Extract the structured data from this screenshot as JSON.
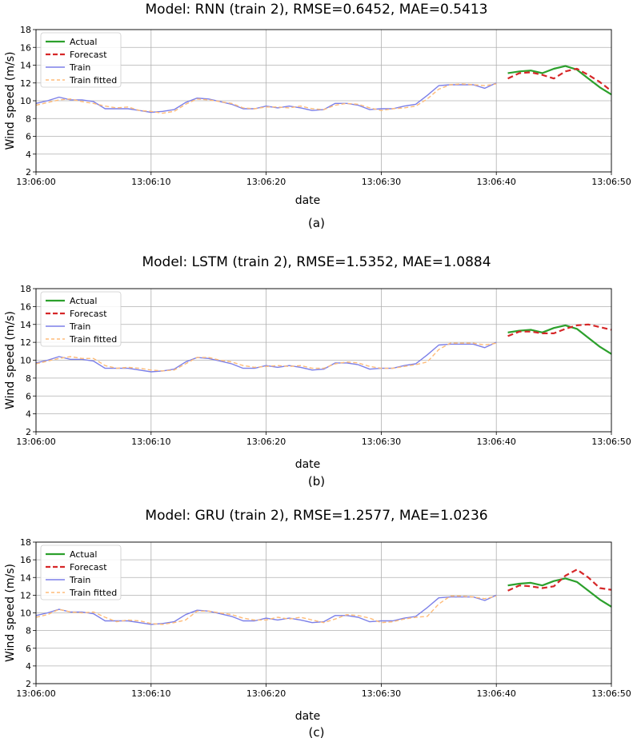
{
  "chart_data": [
    {
      "type": "line",
      "title": "Model: RNN (train 2), RMSE=0.6452, MAE=0.5413",
      "xlabel": "date",
      "ylabel": "Wind speed (m/s)",
      "panel_label": "(a)",
      "ylim": [
        2,
        18
      ],
      "yticks": [
        2,
        4,
        6,
        8,
        10,
        12,
        14,
        16,
        18
      ],
      "xlim": [
        0,
        50
      ],
      "xticks": [
        "13:06:00",
        "13:06:10",
        "13:06:20",
        "13:06:30",
        "13:06:40",
        "13:06:50"
      ],
      "grid": true,
      "legend_position": "top-left",
      "series": [
        {
          "name": "Actual",
          "color": "#2ca02c",
          "style": "solid",
          "x": [
            41,
            42,
            43,
            44,
            45,
            46,
            47,
            48,
            49,
            50
          ],
          "values": [
            13.1,
            13.3,
            13.4,
            13.1,
            13.6,
            13.9,
            13.5,
            12.5,
            11.5,
            10.7
          ]
        },
        {
          "name": "Forecast",
          "color": "#d62728",
          "style": "dashed",
          "x": [
            41,
            42,
            43,
            44,
            45,
            46,
            47,
            48,
            49,
            50
          ],
          "values": [
            12.5,
            13.1,
            13.2,
            12.9,
            12.5,
            13.3,
            13.6,
            12.9,
            12.1,
            11.1
          ]
        },
        {
          "name": "Train",
          "color": "#7b7fe8",
          "style": "solid",
          "x": [
            0,
            1,
            2,
            3,
            4,
            5,
            6,
            7,
            8,
            9,
            10,
            11,
            12,
            13,
            14,
            15,
            16,
            17,
            18,
            19,
            20,
            21,
            22,
            23,
            24,
            25,
            26,
            27,
            28,
            29,
            30,
            31,
            32,
            33,
            34,
            35,
            36,
            37,
            38,
            39,
            40
          ],
          "values": [
            9.7,
            10.0,
            10.4,
            10.1,
            10.1,
            9.9,
            9.1,
            9.1,
            9.1,
            8.9,
            8.7,
            8.8,
            9.0,
            9.8,
            10.3,
            10.2,
            9.9,
            9.6,
            9.1,
            9.1,
            9.4,
            9.2,
            9.4,
            9.2,
            8.9,
            9.0,
            9.7,
            9.7,
            9.5,
            9.0,
            9.1,
            9.1,
            9.4,
            9.6,
            10.6,
            11.7,
            11.8,
            11.8,
            11.8,
            11.4,
            12.0
          ]
        },
        {
          "name": "Train fitted",
          "color": "#ffbb78",
          "style": "dashed",
          "x": [
            0,
            1,
            2,
            3,
            4,
            5,
            6,
            7,
            8,
            9,
            10,
            11,
            12,
            13,
            14,
            15,
            16,
            17,
            18,
            19,
            20,
            21,
            22,
            23,
            24,
            25,
            26,
            27,
            28,
            29,
            30,
            31,
            32,
            33,
            34,
            35,
            36,
            37,
            38,
            39,
            40
          ],
          "values": [
            9.5,
            9.8,
            10.1,
            10.2,
            9.9,
            9.7,
            9.4,
            9.2,
            9.3,
            8.9,
            8.8,
            8.6,
            8.8,
            9.6,
            10.2,
            10.1,
            9.9,
            9.7,
            9.2,
            9.1,
            9.3,
            9.3,
            9.2,
            9.4,
            9.1,
            9.0,
            9.5,
            9.7,
            9.6,
            9.2,
            8.9,
            9.1,
            9.2,
            9.4,
            10.2,
            11.3,
            11.8,
            11.9,
            11.8,
            11.7,
            11.9
          ]
        }
      ]
    },
    {
      "type": "line",
      "title": "Model: LSTM (train 2), RMSE=1.5352, MAE=1.0884",
      "xlabel": "date",
      "ylabel": "Wind speed (m/s)",
      "panel_label": "(b)",
      "ylim": [
        2,
        18
      ],
      "yticks": [
        2,
        4,
        6,
        8,
        10,
        12,
        14,
        16,
        18
      ],
      "xlim": [
        0,
        50
      ],
      "xticks": [
        "13:06:00",
        "13:06:10",
        "13:06:20",
        "13:06:30",
        "13:06:40",
        "13:06:50"
      ],
      "grid": true,
      "legend_position": "top-left",
      "series": [
        {
          "name": "Actual",
          "color": "#2ca02c",
          "style": "solid",
          "x": [
            41,
            42,
            43,
            44,
            45,
            46,
            47,
            48,
            49,
            50
          ],
          "values": [
            13.1,
            13.3,
            13.4,
            13.1,
            13.6,
            13.9,
            13.5,
            12.5,
            11.5,
            10.7
          ]
        },
        {
          "name": "Forecast",
          "color": "#d62728",
          "style": "dashed",
          "x": [
            41,
            42,
            43,
            44,
            45,
            46,
            47,
            48,
            49,
            50
          ],
          "values": [
            12.7,
            13.2,
            13.2,
            13.0,
            13.0,
            13.5,
            13.9,
            14.0,
            13.7,
            13.4
          ]
        },
        {
          "name": "Train",
          "color": "#7b7fe8",
          "style": "solid",
          "x": [
            0,
            1,
            2,
            3,
            4,
            5,
            6,
            7,
            8,
            9,
            10,
            11,
            12,
            13,
            14,
            15,
            16,
            17,
            18,
            19,
            20,
            21,
            22,
            23,
            24,
            25,
            26,
            27,
            28,
            29,
            30,
            31,
            32,
            33,
            34,
            35,
            36,
            37,
            38,
            39,
            40
          ],
          "values": [
            9.7,
            10.0,
            10.4,
            10.1,
            10.1,
            9.9,
            9.1,
            9.1,
            9.1,
            8.9,
            8.7,
            8.8,
            9.0,
            9.8,
            10.3,
            10.2,
            9.9,
            9.6,
            9.1,
            9.1,
            9.4,
            9.2,
            9.4,
            9.2,
            8.9,
            9.0,
            9.7,
            9.7,
            9.5,
            9.0,
            9.1,
            9.1,
            9.4,
            9.6,
            10.6,
            11.7,
            11.8,
            11.8,
            11.8,
            11.4,
            12.0
          ]
        },
        {
          "name": "Train fitted",
          "color": "#ffbb78",
          "style": "dashed",
          "x": [
            0,
            1,
            2,
            3,
            4,
            5,
            6,
            7,
            8,
            9,
            10,
            11,
            12,
            13,
            14,
            15,
            16,
            17,
            18,
            19,
            20,
            21,
            22,
            23,
            24,
            25,
            26,
            27,
            28,
            29,
            30,
            31,
            32,
            33,
            34,
            35,
            36,
            37,
            38,
            39,
            40
          ],
          "values": [
            9.6,
            9.9,
            10.2,
            10.4,
            10.2,
            10.2,
            9.4,
            9.1,
            9.2,
            9.1,
            8.9,
            8.8,
            8.9,
            9.6,
            10.3,
            10.3,
            10.0,
            9.8,
            9.4,
            9.2,
            9.3,
            9.4,
            9.3,
            9.4,
            9.1,
            9.1,
            9.6,
            9.8,
            9.7,
            9.3,
            9.1,
            9.1,
            9.3,
            9.5,
            9.8,
            11.2,
            11.9,
            11.9,
            11.9,
            11.7,
            11.9
          ]
        }
      ]
    },
    {
      "type": "line",
      "title": "Model: GRU (train 2), RMSE=1.2577, MAE=1.0236",
      "xlabel": "date",
      "ylabel": "Wind speed (m/s)",
      "panel_label": "(c)",
      "ylim": [
        2,
        18
      ],
      "yticks": [
        2,
        4,
        6,
        8,
        10,
        12,
        14,
        16,
        18
      ],
      "xlim": [
        0,
        50
      ],
      "xticks": [
        "13:06:00",
        "13:06:10",
        "13:06:20",
        "13:06:30",
        "13:06:40",
        "13:06:50"
      ],
      "grid": true,
      "legend_position": "top-left",
      "series": [
        {
          "name": "Actual",
          "color": "#2ca02c",
          "style": "solid",
          "x": [
            41,
            42,
            43,
            44,
            45,
            46,
            47,
            48,
            49,
            50
          ],
          "values": [
            13.1,
            13.3,
            13.4,
            13.1,
            13.6,
            13.9,
            13.5,
            12.5,
            11.5,
            10.7
          ]
        },
        {
          "name": "Forecast",
          "color": "#d62728",
          "style": "dashed",
          "x": [
            41,
            42,
            43,
            44,
            45,
            46,
            47,
            48,
            49,
            50
          ],
          "values": [
            12.5,
            13.1,
            13.0,
            12.8,
            13.0,
            14.2,
            14.9,
            14.0,
            12.8,
            12.6
          ]
        },
        {
          "name": "Train",
          "color": "#7b7fe8",
          "style": "solid",
          "x": [
            0,
            1,
            2,
            3,
            4,
            5,
            6,
            7,
            8,
            9,
            10,
            11,
            12,
            13,
            14,
            15,
            16,
            17,
            18,
            19,
            20,
            21,
            22,
            23,
            24,
            25,
            26,
            27,
            28,
            29,
            30,
            31,
            32,
            33,
            34,
            35,
            36,
            37,
            38,
            39,
            40
          ],
          "values": [
            9.7,
            10.0,
            10.4,
            10.1,
            10.1,
            9.9,
            9.1,
            9.1,
            9.1,
            8.9,
            8.7,
            8.8,
            9.0,
            9.8,
            10.3,
            10.2,
            9.9,
            9.6,
            9.1,
            9.1,
            9.4,
            9.2,
            9.4,
            9.2,
            8.9,
            9.0,
            9.7,
            9.7,
            9.5,
            9.0,
            9.1,
            9.1,
            9.4,
            9.6,
            10.6,
            11.7,
            11.8,
            11.8,
            11.8,
            11.4,
            12.0
          ]
        },
        {
          "name": "Train fitted",
          "color": "#ffbb78",
          "style": "dashed",
          "x": [
            0,
            1,
            2,
            3,
            4,
            5,
            6,
            7,
            8,
            9,
            10,
            11,
            12,
            13,
            14,
            15,
            16,
            17,
            18,
            19,
            20,
            21,
            22,
            23,
            24,
            25,
            26,
            27,
            28,
            29,
            30,
            31,
            32,
            33,
            34,
            35,
            36,
            37,
            38,
            39,
            40
          ],
          "values": [
            9.5,
            9.8,
            10.4,
            10.1,
            10.0,
            10.1,
            9.5,
            9.0,
            9.2,
            9.1,
            8.8,
            8.7,
            8.9,
            9.2,
            10.2,
            10.2,
            10.0,
            9.8,
            9.4,
            9.2,
            9.2,
            9.5,
            9.3,
            9.5,
            9.2,
            8.9,
            9.3,
            9.8,
            9.7,
            9.4,
            8.9,
            9.0,
            9.3,
            9.5,
            9.6,
            11.0,
            11.9,
            11.9,
            11.8,
            11.6,
            11.9
          ]
        }
      ]
    }
  ]
}
